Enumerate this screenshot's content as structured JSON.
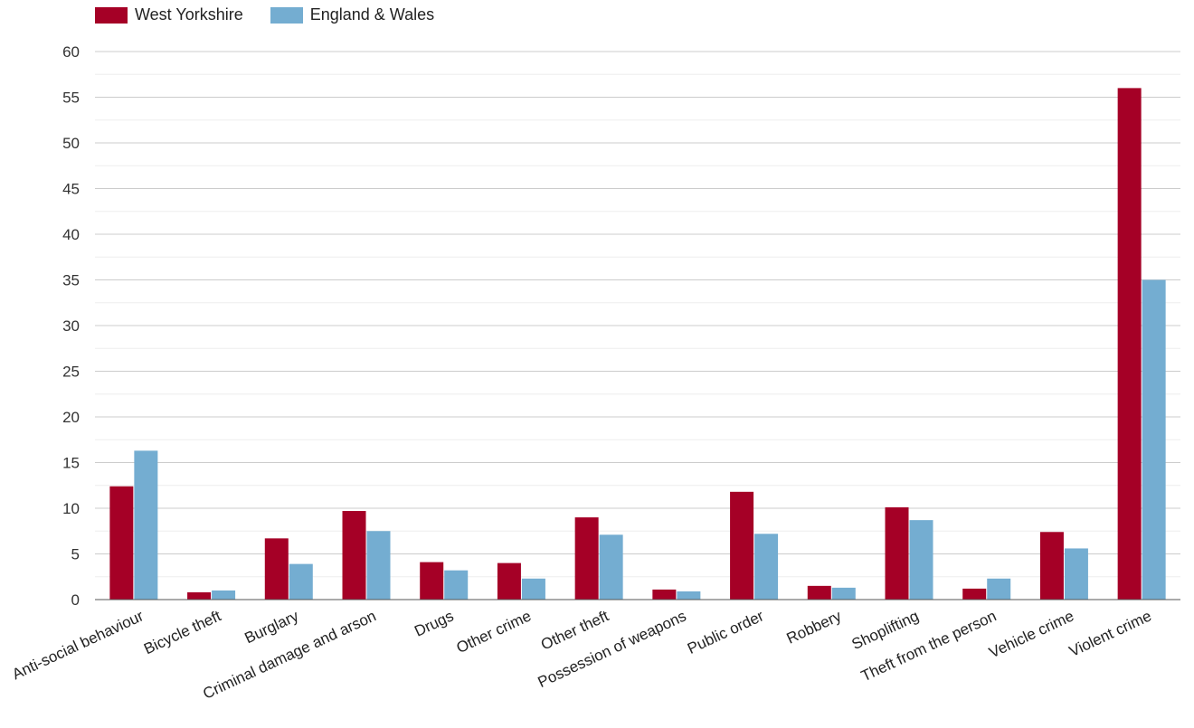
{
  "chart_data": {
    "type": "bar",
    "categories": [
      "Anti-social behaviour",
      "Bicycle theft",
      "Burglary",
      "Criminal damage and arson",
      "Drugs",
      "Other crime",
      "Other theft",
      "Possession of weapons",
      "Public order",
      "Robbery",
      "Shoplifting",
      "Theft from the person",
      "Vehicle crime",
      "Violent crime"
    ],
    "series": [
      {
        "name": "West Yorkshire",
        "color": "#a50026",
        "values": [
          12.4,
          0.8,
          6.7,
          9.7,
          4.1,
          4.0,
          9.0,
          1.1,
          11.8,
          1.5,
          10.1,
          1.2,
          7.4,
          56.0
        ]
      },
      {
        "name": "England & Wales",
        "color": "#74add1",
        "values": [
          16.3,
          1.0,
          3.9,
          7.5,
          3.2,
          2.3,
          7.1,
          0.9,
          7.2,
          1.3,
          8.7,
          2.3,
          5.6,
          35.0
        ]
      }
    ],
    "ylim": [
      0,
      60
    ],
    "yticks": [
      0,
      5,
      10,
      15,
      20,
      25,
      30,
      35,
      40,
      45,
      50,
      55,
      60
    ],
    "title": "",
    "xlabel": "",
    "ylabel": "",
    "grid": true,
    "legend_position": "top-left"
  }
}
